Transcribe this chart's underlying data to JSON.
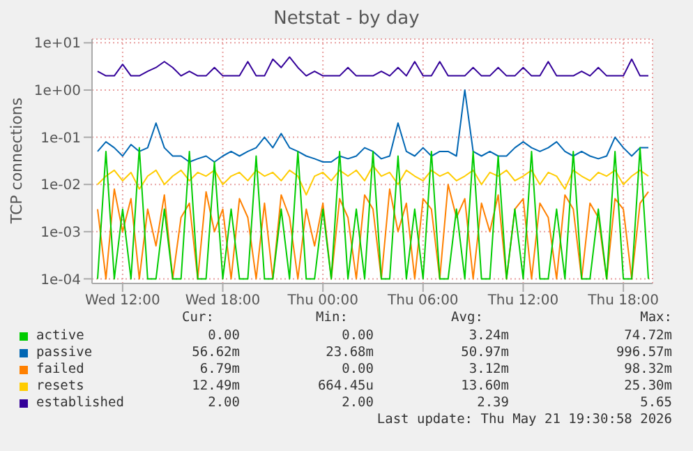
{
  "chart_data": {
    "type": "line",
    "title": "Netstat - by day",
    "ylabel": "TCP connections",
    "log": "y",
    "grid": true,
    "legend": "bottom",
    "marker": "none",
    "line_style": "solid",
    "xlim": [
      "2026-05-20T10:10",
      "2026-05-21T19:45"
    ],
    "xticks": [
      {
        "value": "2026-05-20T12:00",
        "label": "Wed 12:00"
      },
      {
        "value": "2026-05-20T18:00",
        "label": "Wed 18:00"
      },
      {
        "value": "2026-05-21T00:00",
        "label": "Thu 00:00"
      },
      {
        "value": "2026-05-21T06:00",
        "label": "Thu 06:00"
      },
      {
        "value": "2026-05-21T12:00",
        "label": "Thu 12:00"
      },
      {
        "value": "2026-05-21T18:00",
        "label": "Thu 18:00"
      }
    ],
    "ylim": [
      8e-05,
      12
    ],
    "yticks": [
      {
        "value": 0.0001,
        "label": "1e-04"
      },
      {
        "value": 0.001,
        "label": "1e-03"
      },
      {
        "value": 0.01,
        "label": "1e-02"
      },
      {
        "value": 0.1,
        "label": "1e-01"
      },
      {
        "value": 1,
        "label": "1e+00"
      },
      {
        "value": 10,
        "label": "1e+01"
      }
    ],
    "x": [
      "2026-05-20T10:30",
      "2026-05-20T11:00",
      "2026-05-20T11:30",
      "2026-05-20T12:00",
      "2026-05-20T12:30",
      "2026-05-20T13:00",
      "2026-05-20T13:30",
      "2026-05-20T14:00",
      "2026-05-20T14:30",
      "2026-05-20T15:00",
      "2026-05-20T15:30",
      "2026-05-20T16:00",
      "2026-05-20T16:30",
      "2026-05-20T17:00",
      "2026-05-20T17:30",
      "2026-05-20T18:00",
      "2026-05-20T18:30",
      "2026-05-20T19:00",
      "2026-05-20T19:30",
      "2026-05-20T20:00",
      "2026-05-20T20:30",
      "2026-05-20T21:00",
      "2026-05-20T21:30",
      "2026-05-20T22:00",
      "2026-05-20T22:30",
      "2026-05-20T23:00",
      "2026-05-20T23:30",
      "2026-05-21T00:00",
      "2026-05-21T00:30",
      "2026-05-21T01:00",
      "2026-05-21T01:30",
      "2026-05-21T02:00",
      "2026-05-21T02:30",
      "2026-05-21T03:00",
      "2026-05-21T03:30",
      "2026-05-21T04:00",
      "2026-05-21T04:30",
      "2026-05-21T05:00",
      "2026-05-21T05:30",
      "2026-05-21T06:00",
      "2026-05-21T06:30",
      "2026-05-21T07:00",
      "2026-05-21T07:30",
      "2026-05-21T08:00",
      "2026-05-21T08:30",
      "2026-05-21T09:00",
      "2026-05-21T09:30",
      "2026-05-21T10:00",
      "2026-05-21T10:30",
      "2026-05-21T11:00",
      "2026-05-21T11:30",
      "2026-05-21T12:00",
      "2026-05-21T12:30",
      "2026-05-21T13:00",
      "2026-05-21T13:30",
      "2026-05-21T14:00",
      "2026-05-21T14:30",
      "2026-05-21T15:00",
      "2026-05-21T15:30",
      "2026-05-21T16:00",
      "2026-05-21T16:30",
      "2026-05-21T17:00",
      "2026-05-21T17:30",
      "2026-05-21T18:00",
      "2026-05-21T18:30",
      "2026-05-21T19:00",
      "2026-05-21T19:30"
    ],
    "series": [
      {
        "name": "active",
        "color": "#00cc00",
        "values": [
          0.0001,
          0.05,
          0.0001,
          0.003,
          0.0001,
          0.06,
          0.0001,
          0.0001,
          0.003,
          0.0001,
          0.0001,
          0.05,
          0.0001,
          0.0001,
          0.03,
          0.0001,
          0.003,
          0.0001,
          0.0001,
          0.04,
          0.0001,
          0.0001,
          0.003,
          0.0001,
          0.05,
          0.0001,
          0.0001,
          0.003,
          0.0001,
          0.05,
          0.0001,
          0.003,
          0.0001,
          0.05,
          0.0001,
          0.0001,
          0.04,
          0.0001,
          0.003,
          0.0001,
          0.05,
          0.0001,
          0.0001,
          0.003,
          0.0001,
          0.05,
          0.0001,
          0.0001,
          0.04,
          0.0001,
          0.003,
          0.0001,
          0.05,
          0.0001,
          0.0001,
          0.003,
          0.0001,
          0.05,
          0.0001,
          0.0001,
          0.003,
          0.0001,
          0.05,
          0.0001,
          0.0001,
          0.06,
          0.0001
        ]
      },
      {
        "name": "passive",
        "color": "#0066b3",
        "values": [
          0.05,
          0.08,
          0.06,
          0.04,
          0.07,
          0.05,
          0.06,
          0.2,
          0.06,
          0.04,
          0.04,
          0.03,
          0.035,
          0.04,
          0.03,
          0.04,
          0.05,
          0.04,
          0.05,
          0.06,
          0.1,
          0.06,
          0.12,
          0.06,
          0.05,
          0.04,
          0.035,
          0.03,
          0.03,
          0.04,
          0.035,
          0.04,
          0.06,
          0.05,
          0.035,
          0.04,
          0.2,
          0.05,
          0.04,
          0.06,
          0.04,
          0.05,
          0.05,
          0.04,
          1.0,
          0.05,
          0.04,
          0.05,
          0.04,
          0.04,
          0.06,
          0.08,
          0.06,
          0.05,
          0.06,
          0.08,
          0.05,
          0.04,
          0.05,
          0.04,
          0.035,
          0.04,
          0.1,
          0.06,
          0.04,
          0.06,
          0.06
        ]
      },
      {
        "name": "failed",
        "color": "#ff8000",
        "values": [
          0.003,
          0.0001,
          0.008,
          0.001,
          0.005,
          0.0001,
          0.003,
          0.0005,
          0.006,
          0.0001,
          0.002,
          0.004,
          0.0001,
          0.007,
          0.001,
          0.003,
          0.0001,
          0.005,
          0.002,
          0.0001,
          0.004,
          0.0001,
          0.006,
          0.002,
          0.0001,
          0.003,
          0.0005,
          0.004,
          0.0001,
          0.005,
          0.002,
          0.0001,
          0.006,
          0.003,
          0.0001,
          0.008,
          0.001,
          0.004,
          0.0001,
          0.005,
          0.003,
          0.0001,
          0.01,
          0.002,
          0.005,
          0.0001,
          0.004,
          0.001,
          0.006,
          0.0001,
          0.003,
          0.005,
          0.0001,
          0.004,
          0.002,
          0.0001,
          0.006,
          0.003,
          0.0001,
          0.004,
          0.002,
          0.0001,
          0.005,
          0.003,
          0.0001,
          0.004,
          0.007
        ]
      },
      {
        "name": "resets",
        "color": "#ffcc00",
        "values": [
          0.01,
          0.015,
          0.02,
          0.012,
          0.018,
          0.008,
          0.015,
          0.02,
          0.01,
          0.015,
          0.02,
          0.012,
          0.018,
          0.015,
          0.02,
          0.01,
          0.015,
          0.018,
          0.012,
          0.02,
          0.015,
          0.018,
          0.012,
          0.02,
          0.015,
          0.006,
          0.015,
          0.018,
          0.012,
          0.02,
          0.015,
          0.02,
          0.012,
          0.025,
          0.015,
          0.018,
          0.01,
          0.02,
          0.015,
          0.012,
          0.02,
          0.015,
          0.018,
          0.012,
          0.015,
          0.02,
          0.01,
          0.018,
          0.015,
          0.02,
          0.012,
          0.015,
          0.02,
          0.01,
          0.018,
          0.015,
          0.008,
          0.02,
          0.015,
          0.012,
          0.018,
          0.015,
          0.02,
          0.01,
          0.015,
          0.02,
          0.015
        ]
      },
      {
        "name": "established",
        "color": "#330099",
        "values": [
          2.5,
          2,
          2,
          3.5,
          2,
          2,
          2.5,
          3,
          4,
          3,
          2,
          2.5,
          2,
          2,
          3,
          2,
          2,
          2,
          4,
          2,
          2,
          4.5,
          3,
          5,
          3,
          2,
          2.5,
          2,
          2,
          2,
          3,
          2,
          2,
          2,
          2.5,
          2,
          3,
          2,
          4,
          2,
          2,
          4,
          2,
          2,
          2,
          3,
          2,
          2,
          3,
          2,
          2,
          3,
          2,
          2,
          4,
          2,
          2,
          2,
          2.5,
          2,
          3,
          2,
          2,
          2,
          4.5,
          2,
          2
        ]
      }
    ],
    "annotations": [
      "Cur:",
      "Min:",
      "Avg:",
      "Max:",
      "0.00",
      "0.00",
      "3.24m",
      "74.72m",
      "56.62m",
      "23.68m",
      "50.97m",
      "996.57m",
      "6.79m",
      "0.00",
      "3.12m",
      "98.32m",
      "12.49m",
      "664.45u",
      "13.60m",
      "25.30m",
      "2.00",
      "2.00",
      "2.39",
      "5.65",
      "Last update: Thu May 21 19:30:58 2026"
    ]
  }
}
